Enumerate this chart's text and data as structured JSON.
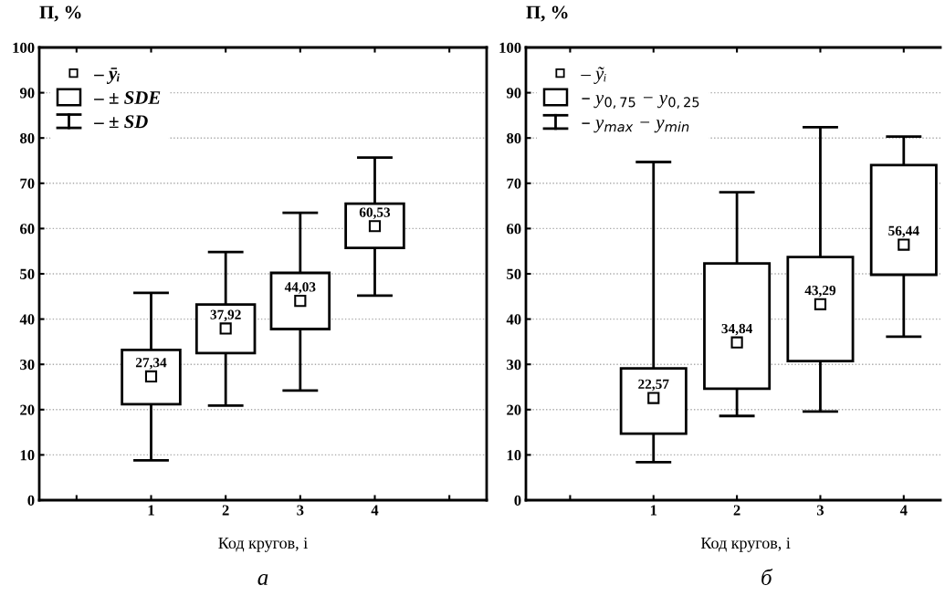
{
  "chart_data": [
    {
      "type": "scatter",
      "ylabel": "П, %",
      "xlabel": "Код кругов, i",
      "annotations": [
        "а",
        "– ± SD"
      ],
      "categories": [
        "1",
        "2",
        "3",
        "4"
      ],
      "ylim": [
        0,
        100
      ],
      "yticks": [
        0,
        10,
        20,
        30,
        40,
        50,
        60,
        70,
        80,
        90,
        100
      ],
      "grid": "y",
      "legend": "top left",
      "series": [
        {
          "name": "– ȳᵢ",
          "color": "#000000",
          "marker": "square",
          "values": [
            27.34,
            37.92,
            44.03,
            60.53
          ],
          "value_labels": [
            "27,34",
            "37,92",
            "44,03",
            "60,53"
          ],
          "errors": [
            [
              8.8,
              45.8
            ],
            [
              20.9,
              54.8
            ],
            [
              24.2,
              63.5
            ],
            [
              45.2,
              75.7
            ]
          ]
        },
        {
          "type": "bar",
          "name": "– ± SDE",
          "color": "#ffffff",
          "base": [
            21.2,
            32.5,
            37.8,
            55.7
          ],
          "values": [
            12.0,
            10.7,
            12.4,
            9.8
          ]
        }
      ]
    },
    {
      "type": "scatter",
      "ylabel": "П, %",
      "xlabel": "Код кругов, i",
      "annotations": [
        "б",
        "– y$_{max}$ − y$_{min}$"
      ],
      "categories": [
        "1",
        "2",
        "3",
        "4"
      ],
      "ylim": [
        0,
        100
      ],
      "yticks": [
        0,
        10,
        20,
        30,
        40,
        50,
        60,
        70,
        80,
        90,
        100
      ],
      "grid": "y",
      "legend": "top left",
      "series": [
        {
          "name": "– ỹᵢ",
          "color": "#000000",
          "marker": "square",
          "values": [
            22.57,
            34.84,
            43.29,
            56.44
          ],
          "value_labels": [
            "22,57",
            "34,84",
            "43,29",
            "56,44"
          ],
          "errors": [
            [
              8.4,
              74.7
            ],
            [
              18.6,
              68.0
            ],
            [
              19.6,
              82.4
            ],
            [
              36.1,
              80.3
            ]
          ]
        },
        {
          "type": "bar",
          "name": "– y$_{0,75}$ − y$_{0,25}$",
          "color": "#ffffff",
          "base": [
            14.7,
            24.6,
            30.7,
            49.8
          ],
          "values": [
            14.4,
            27.7,
            23.0,
            24.2
          ]
        }
      ]
    }
  ]
}
